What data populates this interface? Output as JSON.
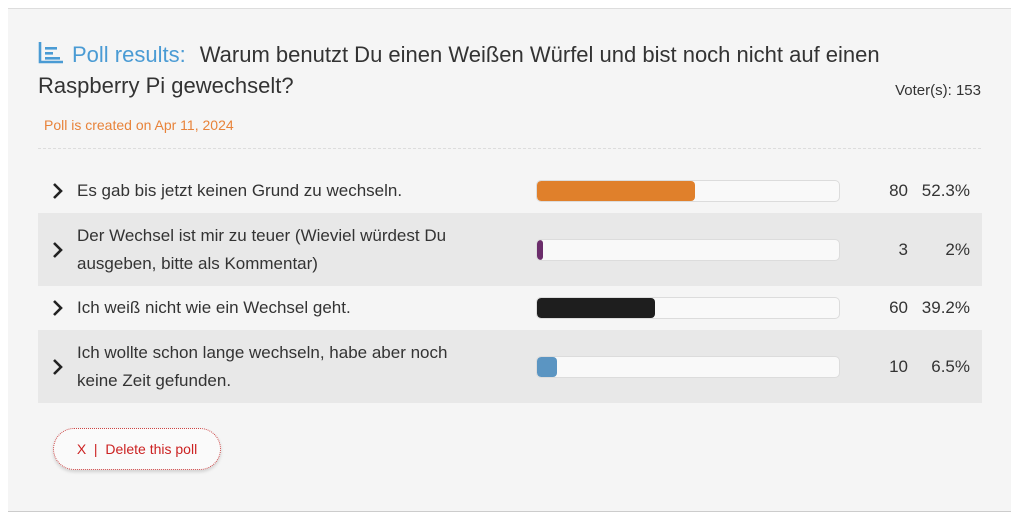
{
  "poll": {
    "label": "Poll results:",
    "question": "Warum benutzt Du einen Weißen Würfel und bist noch nicht auf einen Raspberry Pi gewechselt?",
    "voters": "Voter(s): 153",
    "created": "Poll is created on Apr 11, 2024"
  },
  "options": [
    {
      "text": "Es gab bis jetzt keinen Grund zu wechseln.",
      "count": "80",
      "percent": "52.3%",
      "fraction": 0.523,
      "color": "#e0802b"
    },
    {
      "text": "Der Wechsel ist mir zu teuer (Wieviel würdest Du ausgeben, bitte als Kommentar)",
      "count": "3",
      "percent": "2%",
      "fraction": 0.02,
      "color": "#6b2d6b"
    },
    {
      "text": "Ich weiß nicht wie ein Wechsel geht.",
      "count": "60",
      "percent": "39.2%",
      "fraction": 0.392,
      "color": "#1e1e1e"
    },
    {
      "text": "Ich wollte schon lange wechseln, habe aber noch keine Zeit gefunden.",
      "count": "10",
      "percent": "6.5%",
      "fraction": 0.065,
      "color": "#5b95c2"
    }
  ],
  "delete_button": "X  |  Delete this poll",
  "icons": {
    "poll": "bar-chart-list-icon",
    "expand": "chevron-right-icon"
  },
  "colors": {
    "accent": "#4a9bd4",
    "created": "#e8833a",
    "delete": "#cc2222"
  }
}
